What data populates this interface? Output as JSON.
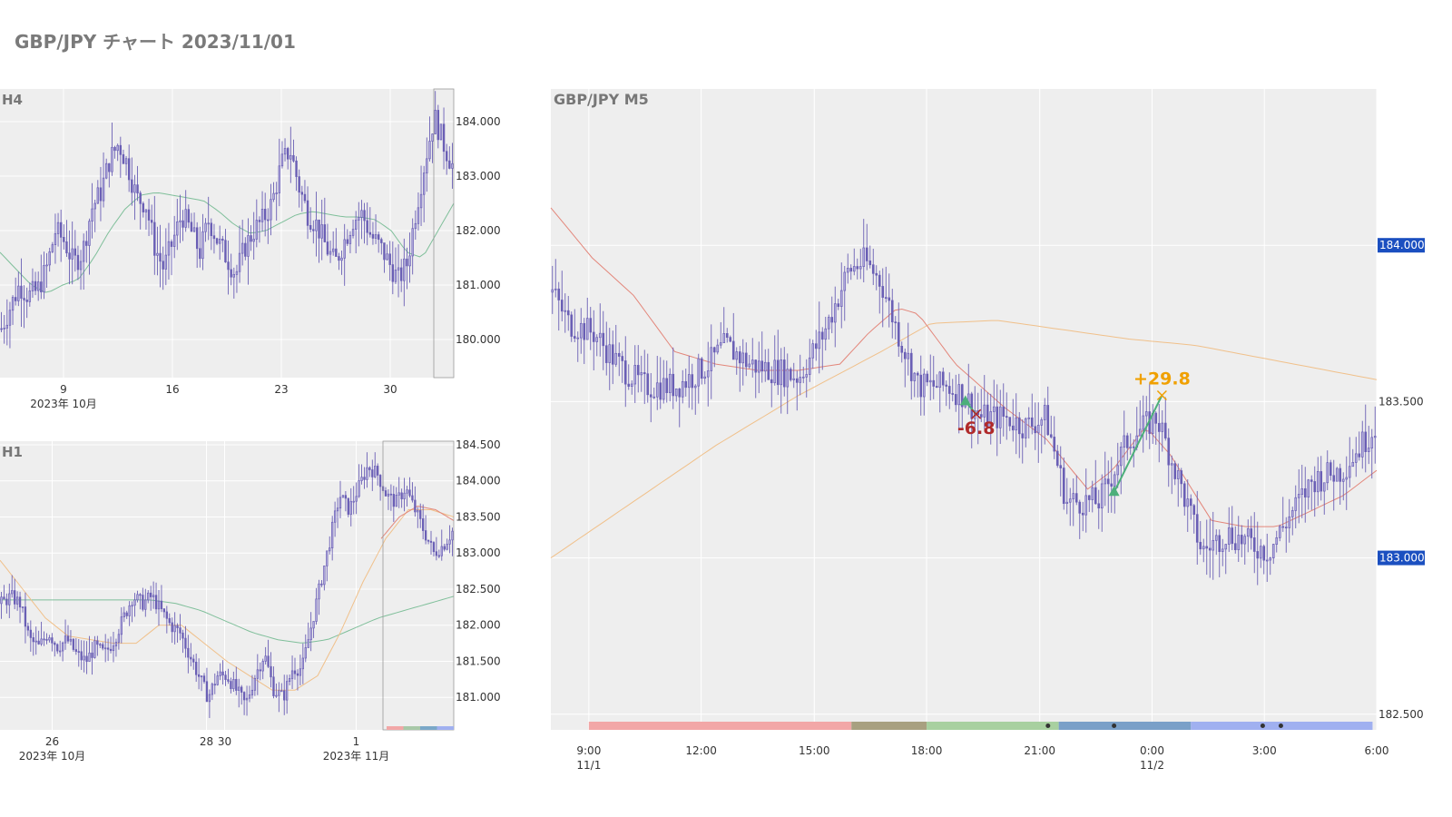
{
  "page": {
    "title": "GBP/JPY チャート 2023/11/01"
  },
  "colors": {
    "plot_bg": "#eeeeee",
    "grid": "#ffffff",
    "candle": "#6a5fb5",
    "ma_red": "#e3867a",
    "ma_green": "#7fbf9a",
    "ma_orange": "#f0c08a",
    "badge_blue": "#1b4fc0",
    "loss_red": "#b02a2a",
    "gain_orange": "#f0a000",
    "trade_green": "#4caf7a"
  },
  "chart_data": [
    {
      "id": "h4",
      "type": "candlestick",
      "title": "H4",
      "x_ticks": [
        {
          "label": "9",
          "pos": 0.14
        },
        {
          "label": "16",
          "pos": 0.38
        },
        {
          "label": "23",
          "pos": 0.62
        },
        {
          "label": "30",
          "pos": 0.86
        }
      ],
      "x_sublabels": [
        {
          "label": "2023年 10月",
          "pos": 0.14
        }
      ],
      "y_ticks": [
        "180.000",
        "181.000",
        "182.000",
        "183.000",
        "184.000"
      ],
      "ylim": [
        179.3,
        184.6
      ],
      "close_path": [
        180.2,
        180.6,
        181.0,
        180.8,
        180.9,
        181.3,
        182.0,
        181.8,
        181.4,
        181.6,
        182.4,
        182.7,
        183.3,
        183.6,
        183.2,
        182.6,
        182.5,
        181.7,
        181.3,
        181.8,
        182.3,
        182.0,
        181.6,
        182.2,
        181.8,
        181.5,
        181.2,
        181.7,
        182.0,
        182.2,
        182.5,
        183.2,
        183.5,
        182.8,
        182.3,
        182.1,
        181.7,
        181.4,
        181.8,
        182.2,
        182.3,
        181.9,
        181.7,
        181.4,
        181.1,
        181.4,
        182.4,
        183.3,
        184.1,
        183.6,
        183.2
      ],
      "ma_green": [
        181.6,
        181.3,
        181.0,
        180.85,
        181.0,
        181.1,
        181.5,
        182.0,
        182.4,
        182.65,
        182.7,
        182.65,
        182.6,
        182.55,
        182.35,
        182.1,
        181.95,
        182.0,
        182.15,
        182.3,
        182.35,
        182.3,
        182.25,
        182.25,
        182.2,
        182.0,
        181.6,
        181.5,
        182.0,
        182.5
      ],
      "ma_green_t0": 0.0
    },
    {
      "id": "h1",
      "type": "candlestick",
      "title": "H1",
      "x_ticks": [
        {
          "label": "26",
          "pos": 0.115
        },
        {
          "label": "28",
          "pos": 0.455
        },
        {
          "label": "30",
          "pos": 0.495
        },
        {
          "label": "1",
          "pos": 0.785
        }
      ],
      "x_sublabels": [
        {
          "label": "2023年 10月",
          "pos": 0.115
        },
        {
          "label": "2023年 11月",
          "pos": 0.785
        }
      ],
      "y_ticks": [
        "181.000",
        "181.500",
        "182.000",
        "182.500",
        "183.000",
        "183.500",
        "184.000",
        "184.500"
      ],
      "ylim": [
        180.55,
        184.55
      ],
      "close_path": [
        182.3,
        182.4,
        182.3,
        181.8,
        181.7,
        181.9,
        181.7,
        181.8,
        181.6,
        181.5,
        181.7,
        181.6,
        181.8,
        182.1,
        182.4,
        182.3,
        182.4,
        182.2,
        182.0,
        181.9,
        181.6,
        181.3,
        181.0,
        181.3,
        181.3,
        181.1,
        180.9,
        181.3,
        181.6,
        181.1,
        181.0,
        181.4,
        181.4,
        182.0,
        182.6,
        183.2,
        183.8,
        183.6,
        183.9,
        184.2,
        184.1,
        183.8,
        183.7,
        183.9,
        183.6,
        183.3,
        183.0,
        183.1,
        183.3
      ],
      "ma_green": [
        182.35,
        182.35,
        182.35,
        182.35,
        182.35,
        182.35,
        182.35,
        182.3,
        182.2,
        182.05,
        181.9,
        181.8,
        181.75,
        181.8,
        181.95,
        182.1,
        182.2,
        182.3,
        182.4
      ],
      "ma_orange": [
        182.9,
        182.5,
        182.1,
        181.85,
        181.8,
        181.75,
        181.75,
        182.0,
        182.0,
        181.75,
        181.5,
        181.3,
        181.1,
        181.1,
        181.3,
        181.9,
        182.6,
        183.2,
        183.6,
        183.6,
        183.5
      ],
      "ma_red": [
        183.2,
        183.5,
        183.65,
        183.6,
        183.45
      ],
      "ma_red_t0": 0.84,
      "session_bar": [
        "#f2a7a7",
        "#a8c8a8",
        "#7aa8c8",
        "#a0b0f0"
      ]
    },
    {
      "id": "m5",
      "type": "candlestick",
      "title": "GBP/JPY M5",
      "x_ticks": [
        {
          "label": "9:00",
          "pos": 0.046
        },
        {
          "label": "12:00",
          "pos": 0.182
        },
        {
          "label": "15:00",
          "pos": 0.319
        },
        {
          "label": "18:00",
          "pos": 0.455
        },
        {
          "label": "21:00",
          "pos": 0.592
        },
        {
          "label": "0:00",
          "pos": 0.728
        },
        {
          "label": "3:00",
          "pos": 0.864
        },
        {
          "label": "6:00",
          "pos": 1.0
        }
      ],
      "x_sublabels": [
        {
          "label": "11/1",
          "pos": 0.046
        },
        {
          "label": "11/2",
          "pos": 0.728
        }
      ],
      "y_ticks": [
        {
          "value": 182.5,
          "label": "182.500",
          "badge": false
        },
        {
          "value": 183.0,
          "label": "183.000",
          "badge": true
        },
        {
          "value": 183.5,
          "label": "183.500",
          "badge": false
        },
        {
          "value": 184.0,
          "label": "184.000",
          "badge": true
        }
      ],
      "ylim": [
        182.45,
        184.5
      ],
      "close_path": [
        [
          0.0,
          183.85
        ],
        [
          0.02,
          183.75
        ],
        [
          0.05,
          183.72
        ],
        [
          0.08,
          183.62
        ],
        [
          0.11,
          183.55
        ],
        [
          0.15,
          183.55
        ],
        [
          0.17,
          183.58
        ],
        [
          0.19,
          183.62
        ],
        [
          0.21,
          183.68
        ],
        [
          0.24,
          183.62
        ],
        [
          0.27,
          183.6
        ],
        [
          0.3,
          183.58
        ],
        [
          0.33,
          183.72
        ],
        [
          0.36,
          183.92
        ],
        [
          0.38,
          183.95
        ],
        [
          0.4,
          183.88
        ],
        [
          0.42,
          183.72
        ],
        [
          0.445,
          183.55
        ],
        [
          0.48,
          183.55
        ],
        [
          0.5,
          183.52
        ],
        [
          0.52,
          183.45
        ],
        [
          0.55,
          183.45
        ],
        [
          0.575,
          183.42
        ],
        [
          0.6,
          183.45
        ],
        [
          0.625,
          183.18
        ],
        [
          0.665,
          183.18
        ],
        [
          0.7,
          183.38
        ],
        [
          0.735,
          183.45
        ],
        [
          0.765,
          183.22
        ],
        [
          0.79,
          183.02
        ],
        [
          0.82,
          183.08
        ],
        [
          0.845,
          183.05
        ],
        [
          0.87,
          183.02
        ],
        [
          0.9,
          183.15
        ],
        [
          0.925,
          183.25
        ],
        [
          0.96,
          183.28
        ],
        [
          1.0,
          183.42
        ]
      ],
      "ma_red": [
        [
          0.0,
          184.12
        ],
        [
          0.05,
          183.96
        ],
        [
          0.1,
          183.84
        ],
        [
          0.15,
          183.66
        ],
        [
          0.2,
          183.62
        ],
        [
          0.25,
          183.6
        ],
        [
          0.3,
          183.6
        ],
        [
          0.35,
          183.62
        ],
        [
          0.385,
          183.72
        ],
        [
          0.42,
          183.8
        ],
        [
          0.445,
          183.78
        ],
        [
          0.49,
          183.62
        ],
        [
          0.55,
          183.48
        ],
        [
          0.6,
          183.38
        ],
        [
          0.65,
          183.22
        ],
        [
          0.68,
          183.28
        ],
        [
          0.72,
          183.42
        ],
        [
          0.75,
          183.33
        ],
        [
          0.8,
          183.12
        ],
        [
          0.84,
          183.1
        ],
        [
          0.88,
          183.1
        ],
        [
          0.92,
          183.15
        ],
        [
          0.96,
          183.2
        ],
        [
          1.0,
          183.28
        ]
      ],
      "ma_orange": [
        [
          0.0,
          183.0
        ],
        [
          0.1,
          183.18
        ],
        [
          0.2,
          183.36
        ],
        [
          0.3,
          183.52
        ],
        [
          0.4,
          183.66
        ],
        [
          0.46,
          183.75
        ],
        [
          0.54,
          183.76
        ],
        [
          0.62,
          183.73
        ],
        [
          0.7,
          183.7
        ],
        [
          0.78,
          183.68
        ],
        [
          0.86,
          183.64
        ],
        [
          0.94,
          183.6
        ],
        [
          1.0,
          183.57
        ]
      ],
      "trades": [
        {
          "entry": [
            0.502,
            183.5
          ],
          "exit": [
            0.515,
            183.46
          ],
          "result": "-6.8",
          "kind": "loss"
        },
        {
          "entry": [
            0.682,
            183.21
          ],
          "exit": [
            0.74,
            183.52
          ],
          "result": "+29.8",
          "kind": "gain"
        }
      ],
      "session_bar": [
        {
          "from": 0.046,
          "to": 0.364,
          "color": "#f2a7a7"
        },
        {
          "from": 0.364,
          "to": 0.455,
          "color": "#a8a080"
        },
        {
          "from": 0.455,
          "to": 0.615,
          "color": "#a8d0a0"
        },
        {
          "from": 0.615,
          "to": 0.775,
          "color": "#7aa0c8"
        },
        {
          "from": 0.775,
          "to": 0.995,
          "color": "#a0b0f0"
        }
      ],
      "session_dots": [
        0.602,
        0.682,
        0.862,
        0.884
      ]
    }
  ]
}
